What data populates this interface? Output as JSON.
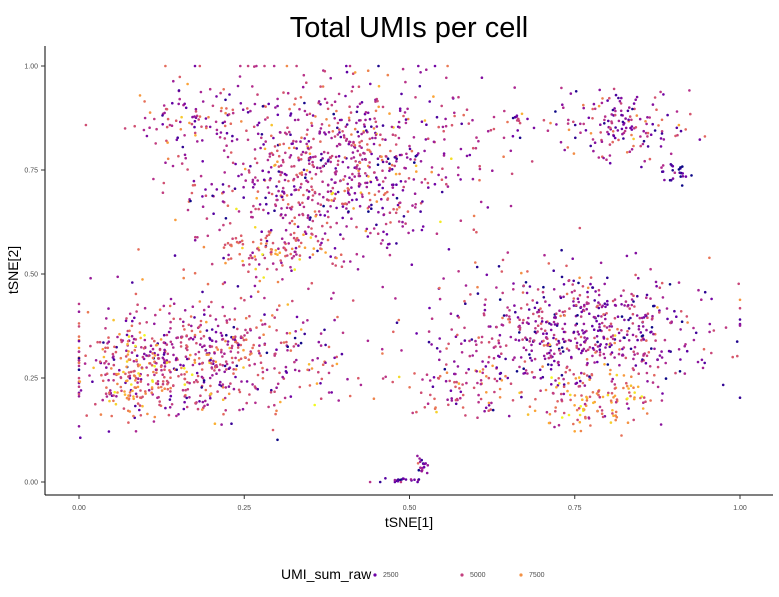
{
  "chart_data": {
    "type": "scatter",
    "title": "Total UMIs per cell",
    "xlabel": "tSNE[1]",
    "ylabel": "tSNE[2]",
    "xlim": [
      -0.05,
      1.05
    ],
    "ylim": [
      -0.04,
      1.04
    ],
    "x_ticks": [
      "0.00",
      "0.25",
      "0.50",
      "0.75",
      "1.00"
    ],
    "y_ticks": [
      "0.00",
      "0.25",
      "0.50",
      "0.75",
      "1.00"
    ],
    "grid": false,
    "legend": {
      "title": "UMI_sum_raw",
      "placement": "bottom",
      "entries": [
        "2500",
        "5000",
        "7500"
      ]
    },
    "color_scale": {
      "palette": "plasma",
      "stops": [
        "#0d0887",
        "#6a00a8",
        "#b12a90",
        "#e16462",
        "#fca636",
        "#f0f921"
      ],
      "umi_min": 500,
      "umi_max": 10000
    },
    "clusters": [
      {
        "center": [
          0.38,
          0.76
        ],
        "spread": [
          0.13,
          0.14
        ],
        "count": 900,
        "umi_mean": 4300
      },
      {
        "center": [
          0.16,
          0.88
        ],
        "spread": [
          0.05,
          0.06
        ],
        "count": 80,
        "umi_mean": 4500
      },
      {
        "center": [
          0.3,
          0.56
        ],
        "spread": [
          0.06,
          0.04
        ],
        "count": 120,
        "umi_mean": 6200
      },
      {
        "center": [
          0.18,
          0.3
        ],
        "spread": [
          0.13,
          0.09
        ],
        "count": 650,
        "umi_mean": 4800
      },
      {
        "center": [
          0.08,
          0.25
        ],
        "spread": [
          0.04,
          0.06
        ],
        "count": 120,
        "umi_mean": 6800
      },
      {
        "center": [
          0.75,
          0.36
        ],
        "spread": [
          0.13,
          0.09
        ],
        "count": 650,
        "umi_mean": 3800
      },
      {
        "center": [
          0.78,
          0.2
        ],
        "spread": [
          0.06,
          0.05
        ],
        "count": 140,
        "umi_mean": 7000
      },
      {
        "center": [
          0.59,
          0.22
        ],
        "spread": [
          0.06,
          0.05
        ],
        "count": 90,
        "umi_mean": 5200
      },
      {
        "center": [
          0.82,
          0.86
        ],
        "spread": [
          0.06,
          0.05
        ],
        "count": 160,
        "umi_mean": 4200
      },
      {
        "center": [
          0.67,
          0.86
        ],
        "spread": [
          0.04,
          0.02
        ],
        "count": 25,
        "umi_mean": 4000
      },
      {
        "center": [
          0.9,
          0.74
        ],
        "spread": [
          0.015,
          0.02
        ],
        "count": 25,
        "umi_mean": 1500
      },
      {
        "center": [
          0.48,
          0.005
        ],
        "spread": [
          0.025,
          0.005
        ],
        "count": 20,
        "umi_mean": 3000
      },
      {
        "center": [
          0.52,
          0.04
        ],
        "spread": [
          0.006,
          0.02
        ],
        "count": 20,
        "umi_mean": 2500
      }
    ]
  }
}
